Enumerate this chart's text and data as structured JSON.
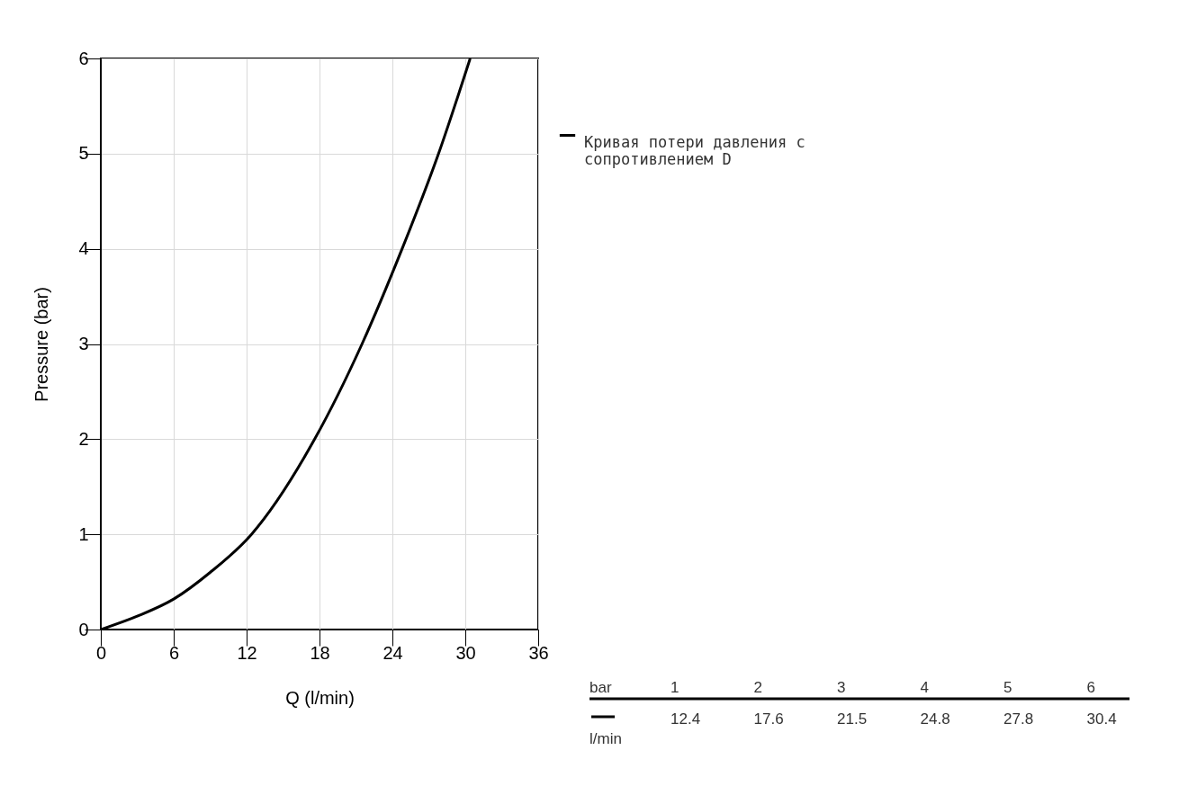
{
  "chart_data": {
    "type": "line",
    "xlabel": "Q (l/min)",
    "ylabel": "Pressure (bar)",
    "x": [
      0,
      3,
      6,
      9,
      12.4,
      17.6,
      21.5,
      24.8,
      27.8,
      30.4
    ],
    "series": [
      {
        "name": "Кривая потери давления с сопротивлением D",
        "color": "#000000",
        "values": [
          0,
          0.14,
          0.32,
          0.6,
          1,
          2,
          3,
          4,
          5,
          6
        ]
      }
    ],
    "xlim": [
      0,
      36
    ],
    "xticks": [
      0,
      6,
      12,
      18,
      24,
      30,
      36
    ],
    "ylim": [
      0,
      6
    ],
    "yticks": [
      0,
      1,
      2,
      3,
      4,
      5,
      6
    ],
    "grid": true,
    "legend": "top right",
    "marker": "none",
    "line_style": "solid",
    "annotations": [
      "bar",
      "1",
      "2",
      "3",
      "4",
      "5",
      "6",
      "12.4",
      "17.6",
      "21.5",
      "24.8",
      "27.8",
      "30.4",
      "l/min"
    ]
  }
}
